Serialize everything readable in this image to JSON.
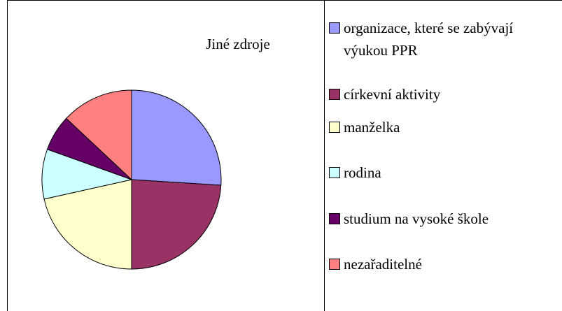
{
  "chart_data": {
    "type": "pie",
    "title": "Jiné zdroje",
    "categories": [
      "organizace, které se zabývají výukou PPR",
      "církevní aktivity",
      "manželka",
      "rodina",
      "studium na vysoké škole",
      "nezařaditelné"
    ],
    "values": [
      26,
      24,
      21.5,
      9,
      6.5,
      13
    ],
    "colors": [
      "#9999ff",
      "#993366",
      "#ffffcc",
      "#ccffff",
      "#660066",
      "#ff8080"
    ]
  }
}
